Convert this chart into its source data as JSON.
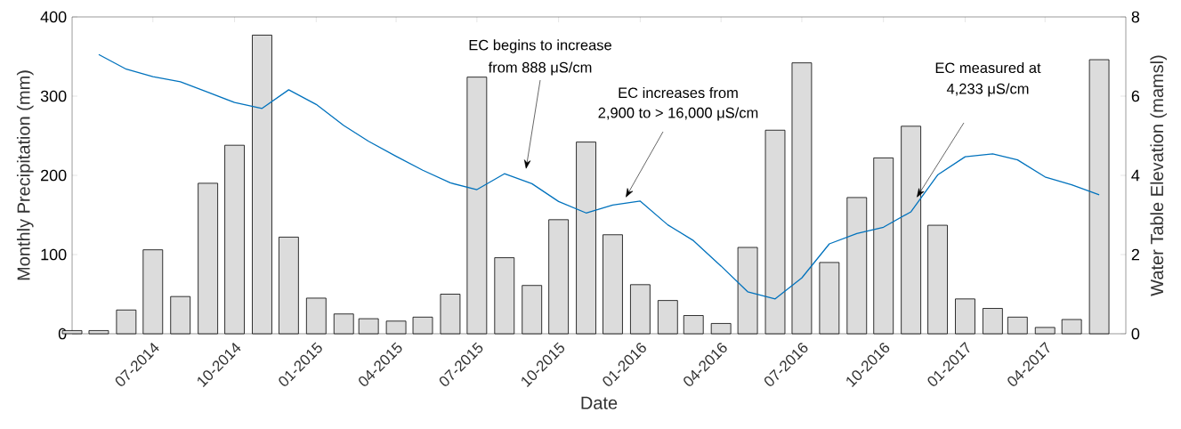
{
  "chart_data": {
    "type": "bar",
    "xlabel": "Date",
    "ylabel": "Monthly Precipitation (mm)",
    "y2label": "Water Table Elevation (mamsl)",
    "x": [
      "2014-04",
      "2014-05",
      "2014-06",
      "2014-07",
      "2014-08",
      "2014-09",
      "2014-10",
      "2014-11",
      "2014-12",
      "2015-01",
      "2015-02",
      "2015-03",
      "2015-04",
      "2015-05",
      "2015-06",
      "2015-07",
      "2015-08",
      "2015-09",
      "2015-10",
      "2015-11",
      "2015-12",
      "2016-01",
      "2016-02",
      "2016-03",
      "2016-04",
      "2016-05",
      "2016-06",
      "2016-07",
      "2016-08",
      "2016-09",
      "2016-10",
      "2016-11",
      "2016-12",
      "2017-01",
      "2017-02",
      "2017-03",
      "2017-04",
      "2017-05",
      "2017-06"
    ],
    "xlim": [
      "2014-04",
      "2017-07"
    ],
    "xticks": [
      {
        "value": "2014-07",
        "label": "07-2014"
      },
      {
        "value": "2014-10",
        "label": "10-2014"
      },
      {
        "value": "2015-01",
        "label": "01-2015"
      },
      {
        "value": "2015-04",
        "label": "04-2015"
      },
      {
        "value": "2015-07",
        "label": "07-2015"
      },
      {
        "value": "2015-10",
        "label": "10-2015"
      },
      {
        "value": "2016-01",
        "label": "01-2016"
      },
      {
        "value": "2016-04",
        "label": "04-2016"
      },
      {
        "value": "2016-07",
        "label": "07-2016"
      },
      {
        "value": "2016-10",
        "label": "10-2016"
      },
      {
        "value": "2017-01",
        "label": "01-2017"
      },
      {
        "value": "2017-04",
        "label": "04-2017"
      }
    ],
    "ylim": [
      0,
      400
    ],
    "yticks": [
      0,
      100,
      200,
      300,
      400
    ],
    "y2lim": [
      0,
      8
    ],
    "y2ticks": [
      0,
      2,
      4,
      6,
      8
    ],
    "series": [
      {
        "color": "#dcdcdc",
        "values": [
          4,
          4,
          30,
          106,
          47,
          190,
          238,
          377,
          122,
          45,
          25,
          19,
          16,
          21,
          50,
          324,
          96,
          61,
          144,
          242,
          125,
          62,
          42,
          23,
          13,
          109,
          257,
          342,
          90,
          172,
          222,
          262,
          137,
          44,
          32,
          21,
          8,
          18,
          346
        ]
      },
      {
        "type": "line",
        "axis": "y2",
        "color": "#0072bd",
        "x": [
          "2014-05",
          "2014-06",
          "2014-07",
          "2014-08",
          "2014-09",
          "2014-10",
          "2014-11",
          "2014-12",
          "2015-01",
          "2015-02",
          "2015-03",
          "2015-04",
          "2015-05",
          "2015-06",
          "2015-07",
          "2015-08",
          "2015-09",
          "2015-10",
          "2015-11",
          "2015-12",
          "2016-01",
          "2016-02",
          "2016-03",
          "2016-04",
          "2016-05",
          "2016-06",
          "2016-07",
          "2016-08",
          "2016-09",
          "2016-10",
          "2016-11",
          "2016-12",
          "2017-01",
          "2017-02",
          "2017-03",
          "2017-04",
          "2017-05",
          "2017-06"
        ],
        "values": [
          7.05,
          6.68,
          6.49,
          6.36,
          6.1,
          5.84,
          5.69,
          6.16,
          5.79,
          5.26,
          4.86,
          4.48,
          4.13,
          3.81,
          3.64,
          4.04,
          3.79,
          3.34,
          3.05,
          3.25,
          3.35,
          2.75,
          2.35,
          1.71,
          1.06,
          0.88,
          1.41,
          2.27,
          2.53,
          2.69,
          3.08,
          4.01,
          4.47,
          4.54,
          4.39,
          3.96,
          3.76,
          3.51
        ]
      }
    ],
    "annotations": [
      "EC begins to increase",
      "from 888 μS/cm",
      "EC increases from",
      "2,900 to > 16,000 μS/cm",
      "EC measured at",
      "4,233 μS/cm"
    ]
  }
}
